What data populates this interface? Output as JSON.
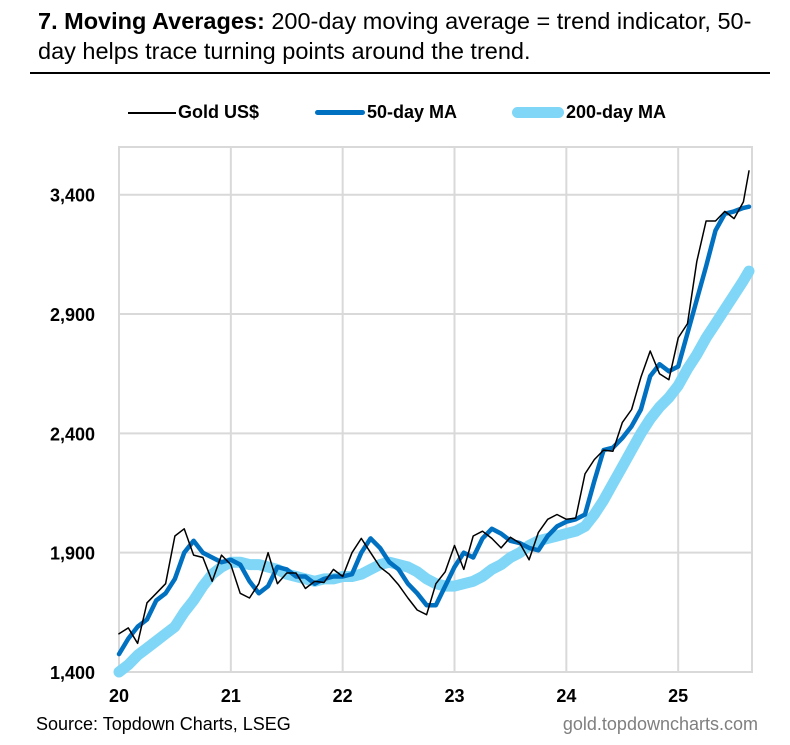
{
  "title": {
    "bold": "7. Moving Averages:",
    "rest": " 200-day moving average = trend indicator, 50-day helps trace turning points around the trend."
  },
  "footer": {
    "source": "Source: Topdown Charts, LSEG",
    "website": "gold.topdowncharts.com"
  },
  "chart_data": {
    "type": "line",
    "xlabel": "",
    "ylabel": "",
    "ylim": [
      1400,
      3600
    ],
    "yticks": [
      1400,
      1900,
      2400,
      2900,
      3400
    ],
    "ytick_labels": [
      "1,400",
      "1,900",
      "2,400",
      "2,900",
      "3,400"
    ],
    "xlim": [
      "2020-01",
      "2025-08"
    ],
    "xtick_labels": [
      "20",
      "21",
      "22",
      "23",
      "24",
      "25"
    ],
    "grid": true,
    "legend": "top",
    "x": [
      "2020-01",
      "2020-02",
      "2020-03",
      "2020-04",
      "2020-05",
      "2020-06",
      "2020-07",
      "2020-08",
      "2020-09",
      "2020-10",
      "2020-11",
      "2020-12",
      "2021-01",
      "2021-02",
      "2021-03",
      "2021-04",
      "2021-05",
      "2021-06",
      "2021-07",
      "2021-08",
      "2021-09",
      "2021-10",
      "2021-11",
      "2021-12",
      "2022-01",
      "2022-02",
      "2022-03",
      "2022-04",
      "2022-05",
      "2022-06",
      "2022-07",
      "2022-08",
      "2022-09",
      "2022-10",
      "2022-11",
      "2022-12",
      "2023-01",
      "2023-02",
      "2023-03",
      "2023-04",
      "2023-05",
      "2023-06",
      "2023-07",
      "2023-08",
      "2023-09",
      "2023-10",
      "2023-11",
      "2023-12",
      "2024-01",
      "2024-02",
      "2024-03",
      "2024-04",
      "2024-05",
      "2024-06",
      "2024-07",
      "2024-08",
      "2024-09",
      "2024-10",
      "2024-11",
      "2024-12",
      "2025-01",
      "2025-02",
      "2025-03",
      "2025-04",
      "2025-05",
      "2025-06",
      "2025-07",
      "2025-08",
      "2025-08b"
    ],
    "series": [
      {
        "name": "Gold US$",
        "color": "#000000",
        "values": [
          1560,
          1585,
          1520,
          1690,
          1730,
          1770,
          1970,
          2000,
          1890,
          1880,
          1780,
          1890,
          1850,
          1730,
          1710,
          1770,
          1900,
          1770,
          1815,
          1815,
          1750,
          1780,
          1775,
          1830,
          1800,
          1900,
          1960,
          1900,
          1840,
          1810,
          1765,
          1710,
          1660,
          1640,
          1770,
          1820,
          1930,
          1830,
          1970,
          1990,
          1960,
          1920,
          1965,
          1940,
          1870,
          1985,
          2040,
          2060,
          2040,
          2045,
          2230,
          2290,
          2330,
          2325,
          2445,
          2500,
          2635,
          2745,
          2650,
          2625,
          2800,
          2860,
          3120,
          3290,
          3290,
          3330,
          3300,
          3370,
          3500
        ]
      },
      {
        "name": "50-day MA",
        "color": "#0070C0",
        "values": [
          1475,
          1540,
          1590,
          1620,
          1700,
          1730,
          1790,
          1900,
          1950,
          1900,
          1880,
          1860,
          1870,
          1850,
          1780,
          1730,
          1760,
          1840,
          1830,
          1800,
          1800,
          1770,
          1790,
          1800,
          1800,
          1810,
          1900,
          1960,
          1920,
          1860,
          1830,
          1770,
          1730,
          1680,
          1680,
          1760,
          1840,
          1900,
          1880,
          1960,
          2000,
          1980,
          1950,
          1940,
          1920,
          1910,
          1970,
          2010,
          2030,
          2040,
          2060,
          2200,
          2330,
          2340,
          2380,
          2430,
          2500,
          2640,
          2690,
          2660,
          2680,
          2820,
          2960,
          3100,
          3250,
          3320,
          3330,
          3345,
          3350
        ]
      },
      {
        "name": "200-day MA",
        "color": "#7FD6F7",
        "values": [
          1400,
          1430,
          1470,
          1500,
          1530,
          1560,
          1590,
          1650,
          1700,
          1760,
          1810,
          1840,
          1860,
          1860,
          1850,
          1850,
          1840,
          1830,
          1810,
          1800,
          1790,
          1780,
          1790,
          1790,
          1800,
          1800,
          1810,
          1830,
          1850,
          1860,
          1850,
          1840,
          1820,
          1790,
          1770,
          1760,
          1760,
          1770,
          1780,
          1800,
          1830,
          1850,
          1880,
          1900,
          1930,
          1950,
          1960,
          1970,
          1980,
          1990,
          2010,
          2060,
          2120,
          2190,
          2260,
          2330,
          2400,
          2460,
          2510,
          2550,
          2600,
          2670,
          2730,
          2800,
          2860,
          2920,
          2980,
          3040,
          3080
        ]
      }
    ]
  }
}
